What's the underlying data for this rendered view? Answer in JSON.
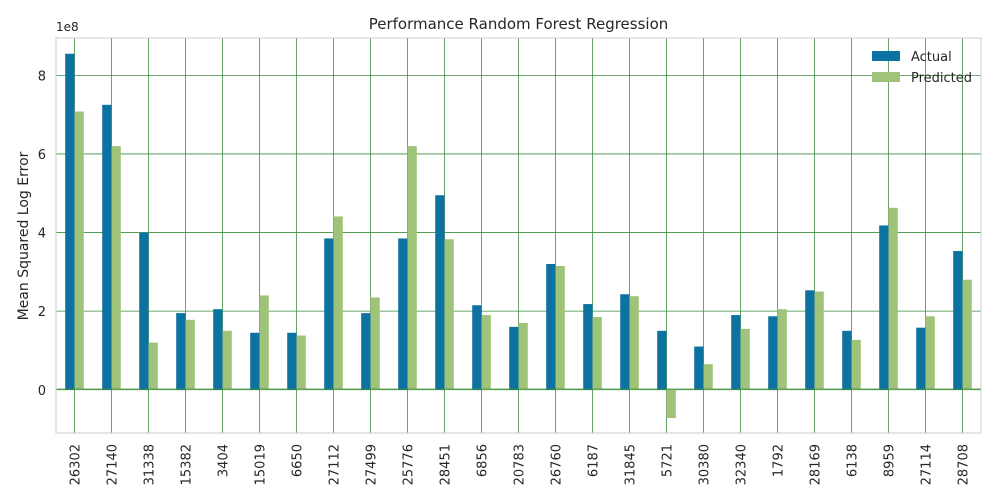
{
  "chart_data": {
    "type": "bar",
    "title": "Performance Random Forest Regression",
    "xlabel": "",
    "ylabel": "Mean Squared Log Error",
    "y_scale_text": "1e8",
    "scale_factor": 100000000,
    "ylim": [
      -110000000,
      895000000
    ],
    "y_ticks": [
      0,
      200000000,
      400000000,
      600000000,
      800000000
    ],
    "y_tick_labels": [
      "0",
      "2",
      "4",
      "6",
      "8"
    ],
    "categories": [
      "26302",
      "27140",
      "31338",
      "15382",
      "3404",
      "15019",
      "6650",
      "27112",
      "27499",
      "25776",
      "28451",
      "6856",
      "20783",
      "26760",
      "6187",
      "31845",
      "5721",
      "30380",
      "32340",
      "1792",
      "28169",
      "6138",
      "8959",
      "27114",
      "28708"
    ],
    "series": [
      {
        "name": "Actual",
        "color": "#0d72a0",
        "values": [
          855000000,
          725000000,
          400000000,
          195000000,
          205000000,
          145000000,
          145000000,
          385000000,
          195000000,
          385000000,
          495000000,
          215000000,
          160000000,
          320000000,
          218000000,
          243000000,
          150000000,
          110000000,
          190000000,
          187000000,
          253000000,
          150000000,
          418000000,
          158000000,
          353000000
        ]
      },
      {
        "name": "Predicted",
        "color": "#a0c37a",
        "values": [
          708000000,
          620000000,
          120000000,
          178000000,
          150000000,
          240000000,
          138000000,
          441000000,
          235000000,
          620000000,
          383000000,
          190000000,
          170000000,
          315000000,
          185000000,
          238000000,
          -72000000,
          65000000,
          155000000,
          205000000,
          250000000,
          127000000,
          463000000,
          187000000,
          280000000
        ]
      }
    ],
    "legend": {
      "position": "top-right",
      "entries": [
        "Actual",
        "Predicted"
      ]
    },
    "grid": true,
    "grid_color": "#3f8f3f",
    "background": "#ffffff"
  }
}
